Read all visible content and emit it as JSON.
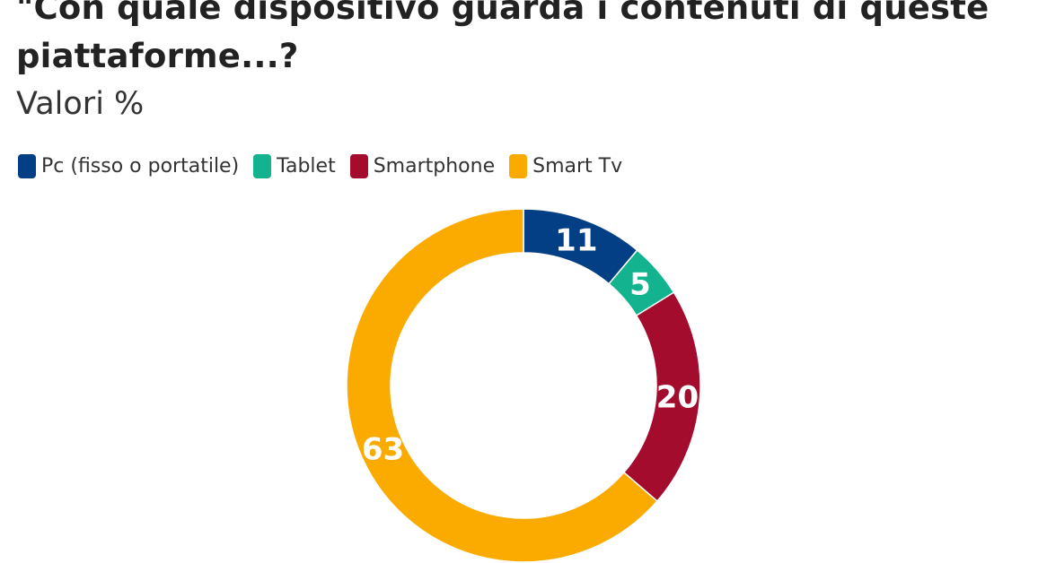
{
  "header": {
    "title": "\"Con quale dispositivo guarda i contenuti di queste piattaforme...?",
    "subtitle": "Valori %"
  },
  "chart_data": {
    "type": "pie",
    "variant": "donut",
    "title": "\"Con quale dispositivo guarda i contenuti di queste piattaforme...?",
    "subtitle": "Valori %",
    "legend_position": "top-left",
    "categories": [
      "Pc (fisso o portatile)",
      "Tablet",
      "Smartphone",
      "Smart Tv"
    ],
    "values": [
      11,
      5,
      20,
      63
    ],
    "colors": [
      "#033f85",
      "#12b38e",
      "#a30c2c",
      "#fbab00"
    ],
    "data_labels": [
      "11",
      "5",
      "20",
      "63"
    ]
  }
}
